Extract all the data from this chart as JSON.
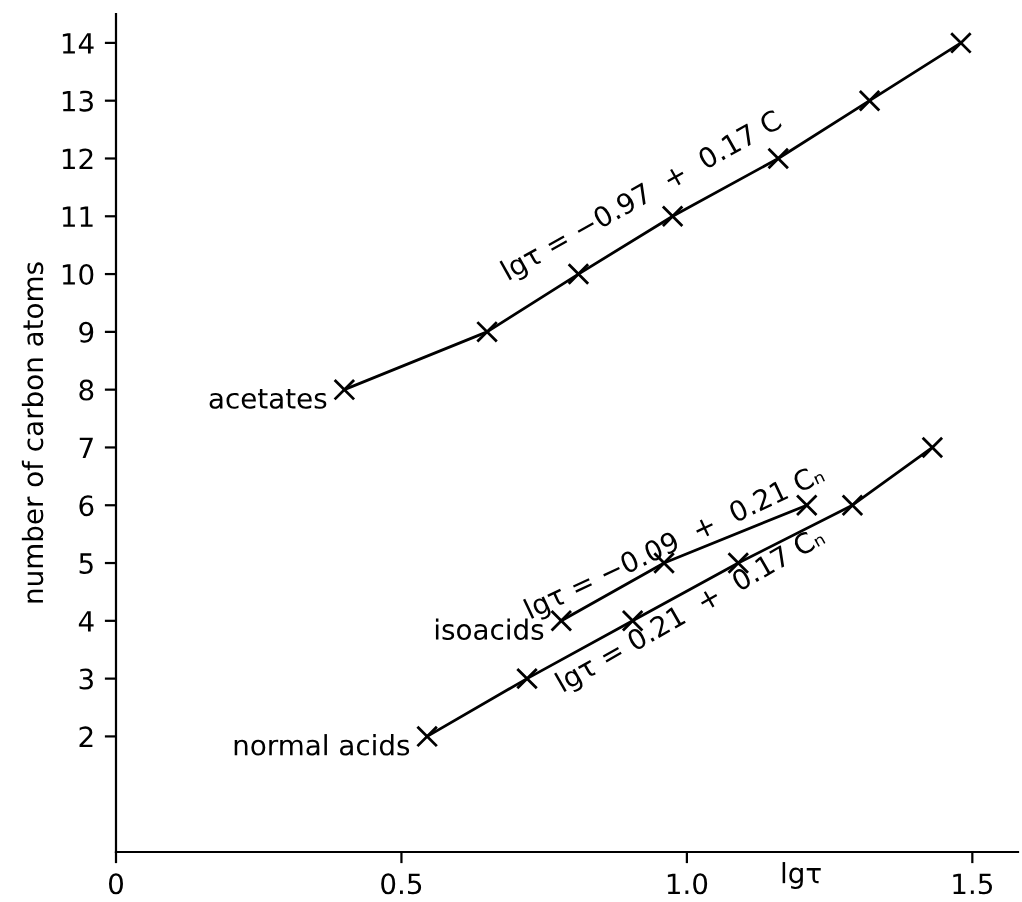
{
  "chart_data": {
    "type": "line",
    "xlabel": "lgτ",
    "ylabel": "number of carbon atoms",
    "xlim": [
      0,
      1.58
    ],
    "ylim": [
      0,
      14.5
    ],
    "xticks": [
      0,
      0.5,
      {
        "value": 1.0,
        "label": "1.0"
      },
      1.5
    ],
    "yticks": [
      2,
      3,
      4,
      5,
      6,
      7,
      8,
      9,
      10,
      11,
      12,
      13,
      14
    ],
    "marker": "cross",
    "line_style": "solid",
    "grid": false,
    "legend": false,
    "series": [
      {
        "name": "acetates",
        "color": "#000000",
        "x": [
          0.4,
          0.65,
          0.81,
          0.975,
          1.16,
          1.32,
          1.48
        ],
        "values": [
          8,
          9,
          10,
          11,
          12,
          13,
          14
        ]
      },
      {
        "name": "isoacids",
        "color": "#000000",
        "x": [
          0.78,
          0.96,
          1.21
        ],
        "values": [
          4,
          5,
          6
        ]
      },
      {
        "name": "normal acids",
        "color": "#000000",
        "x": [
          0.545,
          0.72,
          0.905,
          1.09,
          1.29,
          1.43
        ],
        "values": [
          2,
          3,
          4,
          5,
          6,
          7
        ]
      }
    ],
    "annotations": [
      "lgτ = −0.97  +  0.17 C",
      "lgτ = −0.09  +  0.21 Cₙ",
      "lgτ = 0.21  +  0.17 Cₙ"
    ]
  }
}
